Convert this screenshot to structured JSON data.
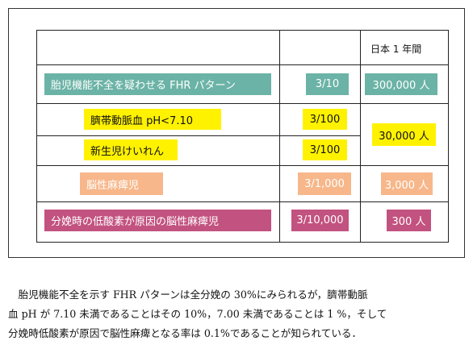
{
  "table": {
    "header_col3": "日本 1 年間",
    "rows": [
      {
        "label": "胎児機能不全を疑わせる FHR パターン",
        "ratio": "3/10",
        "count": "300,000 人"
      },
      {
        "label": "臍帯動脈血 pH<7.10",
        "ratio": "3/100",
        "count": "30,000 人"
      },
      {
        "label": "新生児けいれん",
        "ratio": "3/100",
        "count": ""
      },
      {
        "label": "脳性麻痺児",
        "ratio": "3/1,000",
        "count": "3,000 人"
      },
      {
        "label": "分娩時の低酸素が原因の脳性麻痺児",
        "ratio": "3/10,000",
        "count": "300 人"
      }
    ],
    "colors": {
      "teal": "#6bb3a6",
      "yellow": "#fff200",
      "peach": "#f7b78a",
      "pink": "#c2527f"
    }
  },
  "paragraph": {
    "line1": "胎児機能不全を示す FHR パターンは全分娩の 30%にみられるが，臍帯動脈",
    "line2": "血 pH が 7.10 未満であることはその 10%，7.00 未満であることは 1 %，そして",
    "line3": "分娩時低酸素が原因で脳性麻痺となる率は 0.1%であることが知られている．"
  }
}
